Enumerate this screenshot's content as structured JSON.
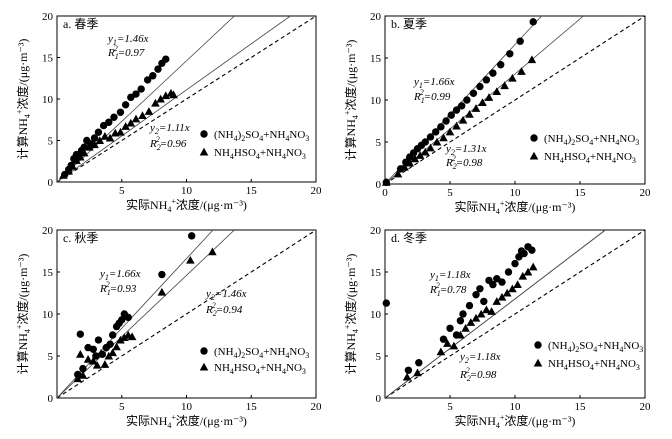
{
  "chart_data": [
    {
      "type": "scatter",
      "title": "a. 春季",
      "xlabel": "实际NH4+浓度/(μg·m⁻³)",
      "ylabel": "计算NH4+浓度/(μg·m⁻³)",
      "xlim": [
        0,
        20
      ],
      "ylim": [
        0,
        20
      ],
      "xticks": [
        5,
        10,
        15,
        20
      ],
      "yticks": [
        0,
        5,
        10,
        15,
        20
      ],
      "series": [
        {
          "name": "(NH4)2SO4+NH4NO3",
          "marker": "circle",
          "points": [
            [
              0.6,
              0.9
            ],
            [
              0.9,
              1.5
            ],
            [
              1.1,
              2.0
            ],
            [
              1.3,
              2.8
            ],
            [
              1.5,
              3.3
            ],
            [
              1.7,
              3.0
            ],
            [
              1.9,
              3.8
            ],
            [
              2.1,
              4.2
            ],
            [
              2.3,
              5.0
            ],
            [
              2.6,
              4.6
            ],
            [
              2.9,
              5.3
            ],
            [
              3.2,
              6.0
            ],
            [
              3.6,
              6.8
            ],
            [
              4.0,
              7.2
            ],
            [
              4.4,
              7.8
            ],
            [
              4.9,
              8.4
            ],
            [
              5.3,
              9.3
            ],
            [
              5.7,
              10.2
            ],
            [
              6.1,
              10.6
            ],
            [
              6.5,
              11.2
            ],
            [
              7.0,
              12.3
            ],
            [
              7.4,
              12.8
            ],
            [
              7.8,
              13.6
            ],
            [
              8.1,
              14.3
            ],
            [
              8.4,
              14.8
            ]
          ]
        },
        {
          "name": "NH4HSO4+NH4NO3",
          "marker": "triangle",
          "points": [
            [
              0.5,
              0.8
            ],
            [
              0.9,
              1.3
            ],
            [
              1.2,
              1.9
            ],
            [
              1.5,
              2.6
            ],
            [
              1.8,
              3.0
            ],
            [
              2.1,
              3.5
            ],
            [
              2.5,
              4.2
            ],
            [
              2.9,
              4.5
            ],
            [
              3.3,
              5.0
            ],
            [
              3.7,
              5.5
            ],
            [
              4.1,
              5.3
            ],
            [
              4.5,
              5.9
            ],
            [
              4.9,
              6.0
            ],
            [
              5.3,
              6.7
            ],
            [
              5.7,
              7.1
            ],
            [
              6.1,
              7.6
            ],
            [
              6.6,
              8.0
            ],
            [
              7.1,
              8.5
            ],
            [
              7.6,
              9.5
            ],
            [
              8.0,
              10.0
            ],
            [
              8.4,
              10.4
            ],
            [
              8.8,
              10.7
            ],
            [
              9.0,
              10.5
            ]
          ]
        }
      ],
      "fits": [
        {
          "label_y": "y1=1.46x",
          "label_r": "R1²=0.97",
          "slope": 1.46
        },
        {
          "label_y": "y2=1.11x",
          "label_r": "R2²=0.96",
          "slope": 1.11
        }
      ],
      "reference_line": "1:1",
      "legend": [
        "(NH4)2SO4+NH4NO3",
        "NH4HSO4+NH4NO3"
      ]
    },
    {
      "type": "scatter",
      "title": "b. 夏季",
      "xlabel": "实际NH4+浓度/(μg·m⁻³)",
      "ylabel": "计算NH4+浓度/(μg·m⁻³)",
      "xlim": [
        0,
        20
      ],
      "ylim": [
        0,
        20
      ],
      "xticks": [
        0,
        5,
        10,
        15,
        20
      ],
      "yticks": [
        0,
        5,
        10,
        15,
        20
      ],
      "series": [
        {
          "name": "(NH4)2SO4+NH4NO3",
          "marker": "circle",
          "points": [
            [
              0.1,
              0.2
            ],
            [
              1.2,
              1.8
            ],
            [
              1.6,
              2.6
            ],
            [
              1.9,
              3.2
            ],
            [
              2.2,
              3.7
            ],
            [
              2.5,
              4.2
            ],
            [
              2.8,
              4.6
            ],
            [
              3.1,
              5.0
            ],
            [
              3.5,
              5.6
            ],
            [
              3.9,
              6.2
            ],
            [
              4.3,
              6.8
            ],
            [
              4.7,
              7.5
            ],
            [
              5.1,
              8.2
            ],
            [
              5.5,
              8.8
            ],
            [
              5.9,
              9.3
            ],
            [
              6.3,
              10.0
            ],
            [
              6.8,
              10.8
            ],
            [
              7.3,
              11.6
            ],
            [
              7.8,
              12.4
            ],
            [
              8.3,
              13.2
            ],
            [
              8.9,
              14.2
            ],
            [
              9.6,
              15.5
            ],
            [
              10.4,
              17.0
            ],
            [
              11.4,
              19.3
            ]
          ]
        },
        {
          "name": "NH4HSO4+NH4NO3",
          "marker": "triangle",
          "points": [
            [
              0.1,
              0.2
            ],
            [
              1.0,
              1.2
            ],
            [
              1.5,
              2.0
            ],
            [
              1.9,
              2.5
            ],
            [
              2.3,
              3.0
            ],
            [
              2.7,
              3.4
            ],
            [
              3.1,
              3.8
            ],
            [
              3.5,
              4.3
            ],
            [
              4.0,
              5.0
            ],
            [
              4.5,
              5.5
            ],
            [
              5.0,
              6.2
            ],
            [
              5.5,
              6.9
            ],
            [
              6.0,
              7.6
            ],
            [
              6.5,
              8.3
            ],
            [
              7.0,
              9.0
            ],
            [
              7.5,
              9.7
            ],
            [
              8.0,
              10.3
            ],
            [
              8.6,
              11.0
            ],
            [
              9.2,
              11.7
            ],
            [
              9.8,
              12.6
            ],
            [
              10.5,
              13.4
            ],
            [
              11.3,
              14.8
            ]
          ]
        }
      ],
      "fits": [
        {
          "label_y": "y1=1.66x",
          "label_r": "R1²=0.99",
          "slope": 1.66
        },
        {
          "label_y": "y2=1.31x",
          "label_r": "R2²=0.98",
          "slope": 1.31
        }
      ],
      "reference_line": "1:1",
      "legend": [
        "(NH4)2SO4+NH4NO3",
        "NH4HSO4+NH4NO3"
      ]
    },
    {
      "type": "scatter",
      "title": "c. 秋季",
      "xlabel": "实际NH4+浓度/(μg·m⁻³)",
      "ylabel": "计算NH4+浓度/(μg·m⁻³)",
      "xlim": [
        0,
        20
      ],
      "ylim": [
        0,
        20
      ],
      "xticks": [
        5,
        10,
        15,
        20
      ],
      "yticks": [
        0,
        5,
        10,
        15,
        20
      ],
      "series": [
        {
          "name": "(NH4)2SO4+NH4NO3",
          "marker": "circle",
          "points": [
            [
              1.6,
              2.8
            ],
            [
              1.8,
              7.6
            ],
            [
              2.0,
              3.5
            ],
            [
              2.4,
              6.0
            ],
            [
              2.8,
              5.8
            ],
            [
              3.0,
              5.0
            ],
            [
              3.2,
              6.9
            ],
            [
              3.5,
              5.2
            ],
            [
              3.8,
              6.0
            ],
            [
              4.1,
              6.4
            ],
            [
              4.3,
              7.5
            ],
            [
              4.6,
              8.5
            ],
            [
              4.8,
              8.9
            ],
            [
              5.0,
              9.3
            ],
            [
              5.2,
              10.0
            ],
            [
              5.5,
              9.6
            ],
            [
              8.1,
              14.7
            ],
            [
              10.4,
              19.3
            ]
          ]
        },
        {
          "name": "NH4HSO4+NH4NO3",
          "marker": "triangle",
          "points": [
            [
              1.6,
              2.3
            ],
            [
              1.8,
              5.2
            ],
            [
              2.0,
              2.7
            ],
            [
              2.4,
              4.6
            ],
            [
              2.8,
              4.4
            ],
            [
              3.1,
              3.9
            ],
            [
              3.4,
              5.3
            ],
            [
              3.7,
              4.0
            ],
            [
              4.0,
              5.0
            ],
            [
              4.3,
              5.4
            ],
            [
              4.6,
              6.1
            ],
            [
              4.9,
              6.9
            ],
            [
              5.2,
              7.2
            ],
            [
              5.5,
              7.5
            ],
            [
              5.8,
              7.3
            ],
            [
              8.1,
              12.6
            ],
            [
              10.3,
              16.4
            ],
            [
              12.0,
              17.4
            ]
          ]
        }
      ],
      "fits": [
        {
          "label_y": "y1=1.66x",
          "label_r": "R1²=0.93",
          "slope": 1.66
        },
        {
          "label_y": "y2=1.46x",
          "label_r": "R2²=0.94",
          "slope": 1.46
        }
      ],
      "reference_line": "1:1",
      "legend": [
        "(NH4)2SO4+NH4NO3",
        "NH4HSO4+NH4NO3"
      ]
    },
    {
      "type": "scatter",
      "title": "d. 冬季",
      "xlabel": "实际NH4+浓度/(μg·m⁻³)",
      "ylabel": "计算NH4+浓度/(μg·m⁻³)",
      "xlim": [
        0,
        20
      ],
      "ylim": [
        0,
        20
      ],
      "xticks": [
        5,
        10,
        15,
        20
      ],
      "yticks": [
        0,
        5,
        10,
        15,
        20
      ],
      "series": [
        {
          "name": "(NH4)2SO4+NH4NO3",
          "marker": "circle",
          "points": [
            [
              0.1,
              11.3
            ],
            [
              1.8,
              3.3
            ],
            [
              2.6,
              4.2
            ],
            [
              4.5,
              7.0
            ],
            [
              5.0,
              8.3
            ],
            [
              5.5,
              7.5
            ],
            [
              5.8,
              9.2
            ],
            [
              6.0,
              10.0
            ],
            [
              6.5,
              11.0
            ],
            [
              7.0,
              12.3
            ],
            [
              7.3,
              13.0
            ],
            [
              7.6,
              11.5
            ],
            [
              8.0,
              14.0
            ],
            [
              8.3,
              13.5
            ],
            [
              8.6,
              14.2
            ],
            [
              9.0,
              13.8
            ],
            [
              9.5,
              15.0
            ],
            [
              10.0,
              16.0
            ],
            [
              10.3,
              16.8
            ],
            [
              10.5,
              17.5
            ],
            [
              10.7,
              17.2
            ],
            [
              11.0,
              18.0
            ],
            [
              11.3,
              17.6
            ]
          ]
        },
        {
          "name": "NH4HSO4+NH4NO3",
          "marker": "triangle",
          "points": [
            [
              1.7,
              2.5
            ],
            [
              2.5,
              3.0
            ],
            [
              4.3,
              5.5
            ],
            [
              4.8,
              6.5
            ],
            [
              5.3,
              6.2
            ],
            [
              5.8,
              7.5
            ],
            [
              6.2,
              8.3
            ],
            [
              6.6,
              9.0
            ],
            [
              7.0,
              9.5
            ],
            [
              7.4,
              10.0
            ],
            [
              7.8,
              10.5
            ],
            [
              8.2,
              10.3
            ],
            [
              8.6,
              11.5
            ],
            [
              9.0,
              12.0
            ],
            [
              9.4,
              12.5
            ],
            [
              9.8,
              13.0
            ],
            [
              10.2,
              13.5
            ],
            [
              10.6,
              14.5
            ],
            [
              11.0,
              15.0
            ],
            [
              11.4,
              15.6
            ]
          ]
        }
      ],
      "fits": [
        {
          "label_y": "y1=1.18x",
          "label_r": "R1²=0.78",
          "slope": 1.18
        },
        {
          "label_y": "y2=1.18x",
          "label_r": "R2²=0.98",
          "slope": 1.18
        }
      ],
      "reference_line": "1:1",
      "legend": [
        "(NH4)2SO4+NH4NO3",
        "NH4HSO4+NH4NO3"
      ]
    }
  ]
}
